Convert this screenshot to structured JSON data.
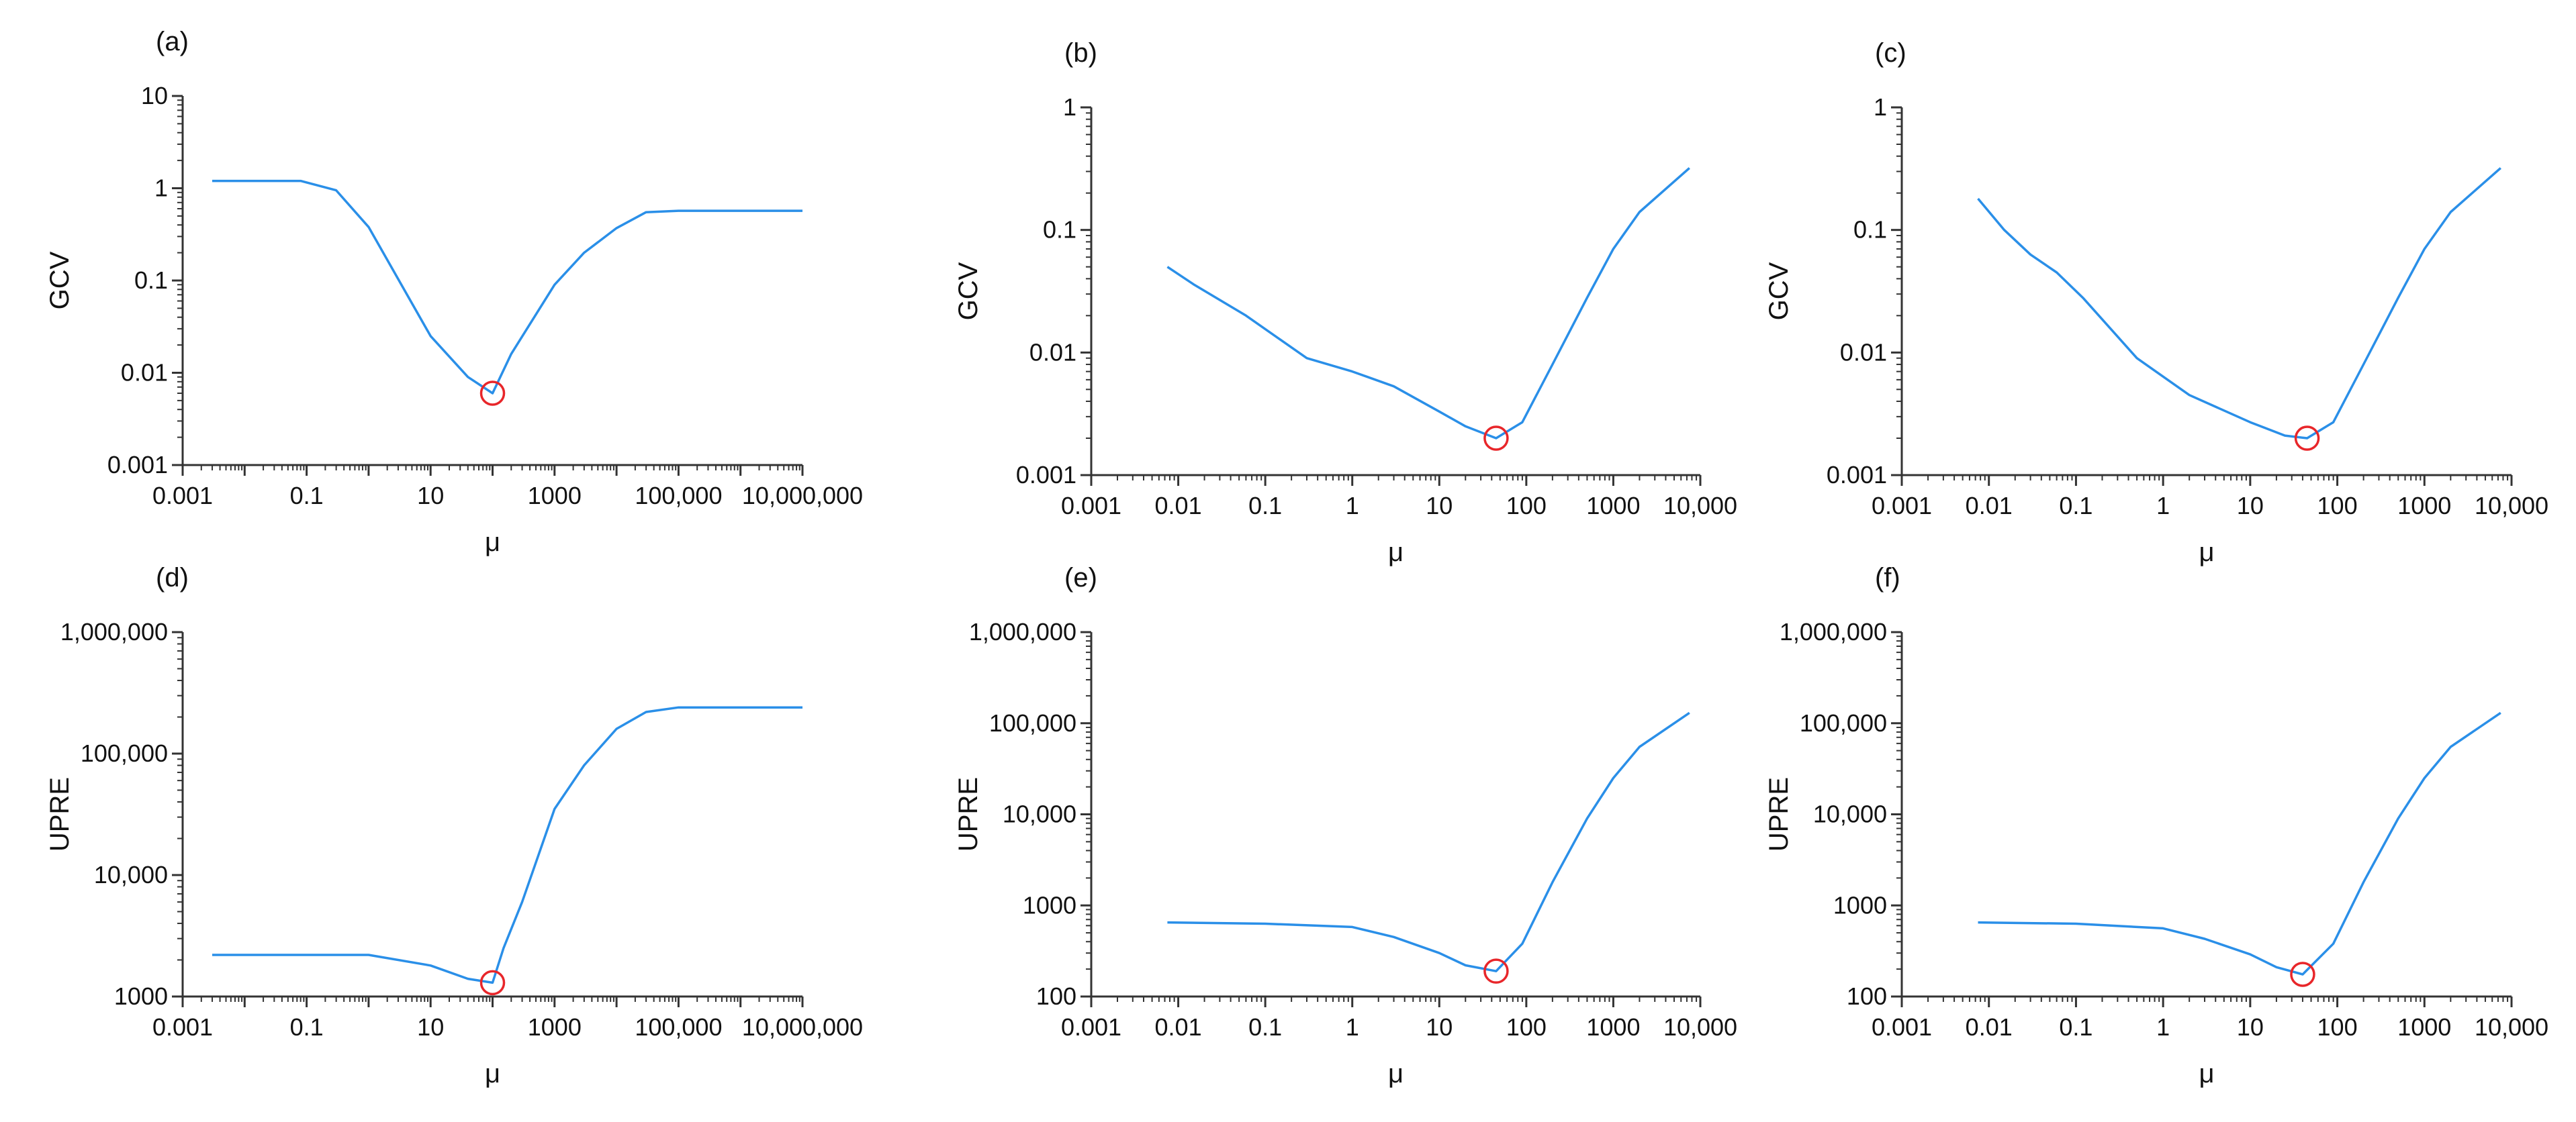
{
  "colors": {
    "series": "#2a8fe8",
    "marker": "#e8262a",
    "axis": "#333333"
  },
  "chart_data": [
    {
      "panel": "(a)",
      "type": "line",
      "xlabel": "μ",
      "ylabel": "GCV",
      "xscale": "log",
      "yscale": "log",
      "xlim": [
        0.001,
        10000000
      ],
      "ylim": [
        0.001,
        10
      ],
      "xticks": [
        0.001,
        0.1,
        10,
        1000,
        100000,
        10000000
      ],
      "xtick_labels": [
        "0.001",
        "0.1",
        "10",
        "1000",
        "100,000",
        "10,000,000"
      ],
      "yticks": [
        0.001,
        0.01,
        0.1,
        1,
        10
      ],
      "ytick_labels": [
        "0.001",
        "0.01",
        "0.1",
        "1",
        "10"
      ],
      "series": [
        {
          "x": [
            0.003,
            0.08,
            0.3,
            1,
            10,
            40,
            100,
            200,
            1000,
            3000,
            10000,
            30000,
            100000,
            10000000
          ],
          "y": [
            1.2,
            1.2,
            0.95,
            0.38,
            0.025,
            0.009,
            0.006,
            0.016,
            0.09,
            0.2,
            0.37,
            0.55,
            0.57,
            0.57
          ]
        }
      ],
      "minimum": {
        "x": 100,
        "y": 0.006
      }
    },
    {
      "panel": "(b)",
      "type": "line",
      "xlabel": "μ",
      "ylabel": "GCV",
      "xscale": "log",
      "yscale": "log",
      "xlim": [
        0.001,
        10000
      ],
      "ylim": [
        0.001,
        1
      ],
      "xticks": [
        0.001,
        0.01,
        0.1,
        1,
        10,
        100,
        1000,
        10000
      ],
      "xtick_labels": [
        "0.001",
        "0.01",
        "0.1",
        "1",
        "10",
        "100",
        "1000",
        "10,000"
      ],
      "yticks": [
        0.001,
        0.01,
        0.1,
        1
      ],
      "ytick_labels": [
        "0.001",
        "0.01",
        "0.1",
        "1"
      ],
      "series": [
        {
          "x": [
            0.0075,
            0.015,
            0.06,
            0.3,
            1,
            3,
            10,
            20,
            45,
            90,
            200,
            500,
            1000,
            2000,
            7500
          ],
          "y": [
            0.05,
            0.036,
            0.02,
            0.009,
            0.007,
            0.0053,
            0.0033,
            0.0025,
            0.002,
            0.0027,
            0.008,
            0.028,
            0.07,
            0.14,
            0.32
          ]
        }
      ],
      "minimum": {
        "x": 45,
        "y": 0.002
      }
    },
    {
      "panel": "(c)",
      "type": "line",
      "xlabel": "μ",
      "ylabel": "GCV",
      "xscale": "log",
      "yscale": "log",
      "xlim": [
        0.001,
        10000
      ],
      "ylim": [
        0.001,
        1
      ],
      "xticks": [
        0.001,
        0.01,
        0.1,
        1,
        10,
        100,
        1000,
        10000
      ],
      "xtick_labels": [
        "0.001",
        "0.01",
        "0.1",
        "1",
        "10",
        "100",
        "1000",
        "10,000"
      ],
      "yticks": [
        0.001,
        0.01,
        0.1,
        1
      ],
      "ytick_labels": [
        "0.001",
        "0.01",
        "0.1",
        "1"
      ],
      "series": [
        {
          "x": [
            0.0075,
            0.015,
            0.03,
            0.06,
            0.12,
            0.5,
            2,
            10,
            25,
            45,
            90,
            200,
            500,
            1000,
            2000,
            7500
          ],
          "y": [
            0.18,
            0.1,
            0.063,
            0.045,
            0.028,
            0.009,
            0.0045,
            0.0027,
            0.0021,
            0.002,
            0.0027,
            0.008,
            0.028,
            0.07,
            0.14,
            0.32
          ]
        }
      ],
      "minimum": {
        "x": 45,
        "y": 0.002
      }
    },
    {
      "panel": "(d)",
      "type": "line",
      "xlabel": "μ",
      "ylabel": "UPRE",
      "xscale": "log",
      "yscale": "log",
      "xlim": [
        0.001,
        10000000
      ],
      "ylim": [
        1000,
        1000000
      ],
      "xticks": [
        0.001,
        0.1,
        10,
        1000,
        100000,
        10000000
      ],
      "xtick_labels": [
        "0.001",
        "0.1",
        "10",
        "1000",
        "100,000",
        "10,000,000"
      ],
      "yticks": [
        1000,
        10000,
        100000,
        1000000
      ],
      "ytick_labels": [
        "1000",
        "10,000",
        "100,000",
        "1,000,000"
      ],
      "series": [
        {
          "x": [
            0.003,
            0.1,
            1,
            10,
            40,
            100,
            150,
            300,
            1000,
            3000,
            10000,
            30000,
            100000,
            10000000
          ],
          "y": [
            2200,
            2200,
            2200,
            1800,
            1400,
            1300,
            2500,
            6000,
            35000,
            80000,
            160000,
            220000,
            240000,
            240000
          ]
        }
      ],
      "minimum": {
        "x": 100,
        "y": 1300
      }
    },
    {
      "panel": "(e)",
      "type": "line",
      "xlabel": "μ",
      "ylabel": "UPRE",
      "xscale": "log",
      "yscale": "log",
      "xlim": [
        0.001,
        10000
      ],
      "ylim": [
        100,
        1000000
      ],
      "xticks": [
        0.001,
        0.01,
        0.1,
        1,
        10,
        100,
        1000,
        10000
      ],
      "xtick_labels": [
        "0.001",
        "0.01",
        "0.1",
        "1",
        "10",
        "100",
        "1000",
        "10,000"
      ],
      "yticks": [
        100,
        1000,
        10000,
        100000,
        1000000
      ],
      "ytick_labels": [
        "100",
        "1000",
        "10,000",
        "100,000",
        "1,000,000"
      ],
      "series": [
        {
          "x": [
            0.0075,
            0.1,
            1,
            3,
            10,
            20,
            45,
            90,
            200,
            500,
            1000,
            2000,
            7500
          ],
          "y": [
            650,
            630,
            580,
            450,
            300,
            220,
            190,
            380,
            1800,
            9000,
            25000,
            55000,
            130000
          ]
        }
      ],
      "minimum": {
        "x": 45,
        "y": 190
      }
    },
    {
      "panel": "(f)",
      "type": "line",
      "xlabel": "μ",
      "ylabel": "UPRE",
      "xscale": "log",
      "yscale": "log",
      "xlim": [
        0.001,
        10000
      ],
      "ylim": [
        100,
        1000000
      ],
      "xticks": [
        0.001,
        0.01,
        0.1,
        1,
        10,
        100,
        1000,
        10000
      ],
      "xtick_labels": [
        "0.001",
        "0.01",
        "0.1",
        "1",
        "10",
        "100",
        "1000",
        "10,000"
      ],
      "yticks": [
        100,
        1000,
        10000,
        100000,
        1000000
      ],
      "ytick_labels": [
        "100",
        "1000",
        "10,000",
        "100,000",
        "1,000,000"
      ],
      "series": [
        {
          "x": [
            0.0075,
            0.1,
            1,
            3,
            10,
            20,
            40,
            90,
            200,
            500,
            1000,
            2000,
            7500
          ],
          "y": [
            650,
            630,
            560,
            430,
            290,
            210,
            175,
            380,
            1800,
            9000,
            25000,
            55000,
            130000
          ]
        }
      ],
      "minimum": {
        "x": 40,
        "y": 175
      }
    }
  ]
}
